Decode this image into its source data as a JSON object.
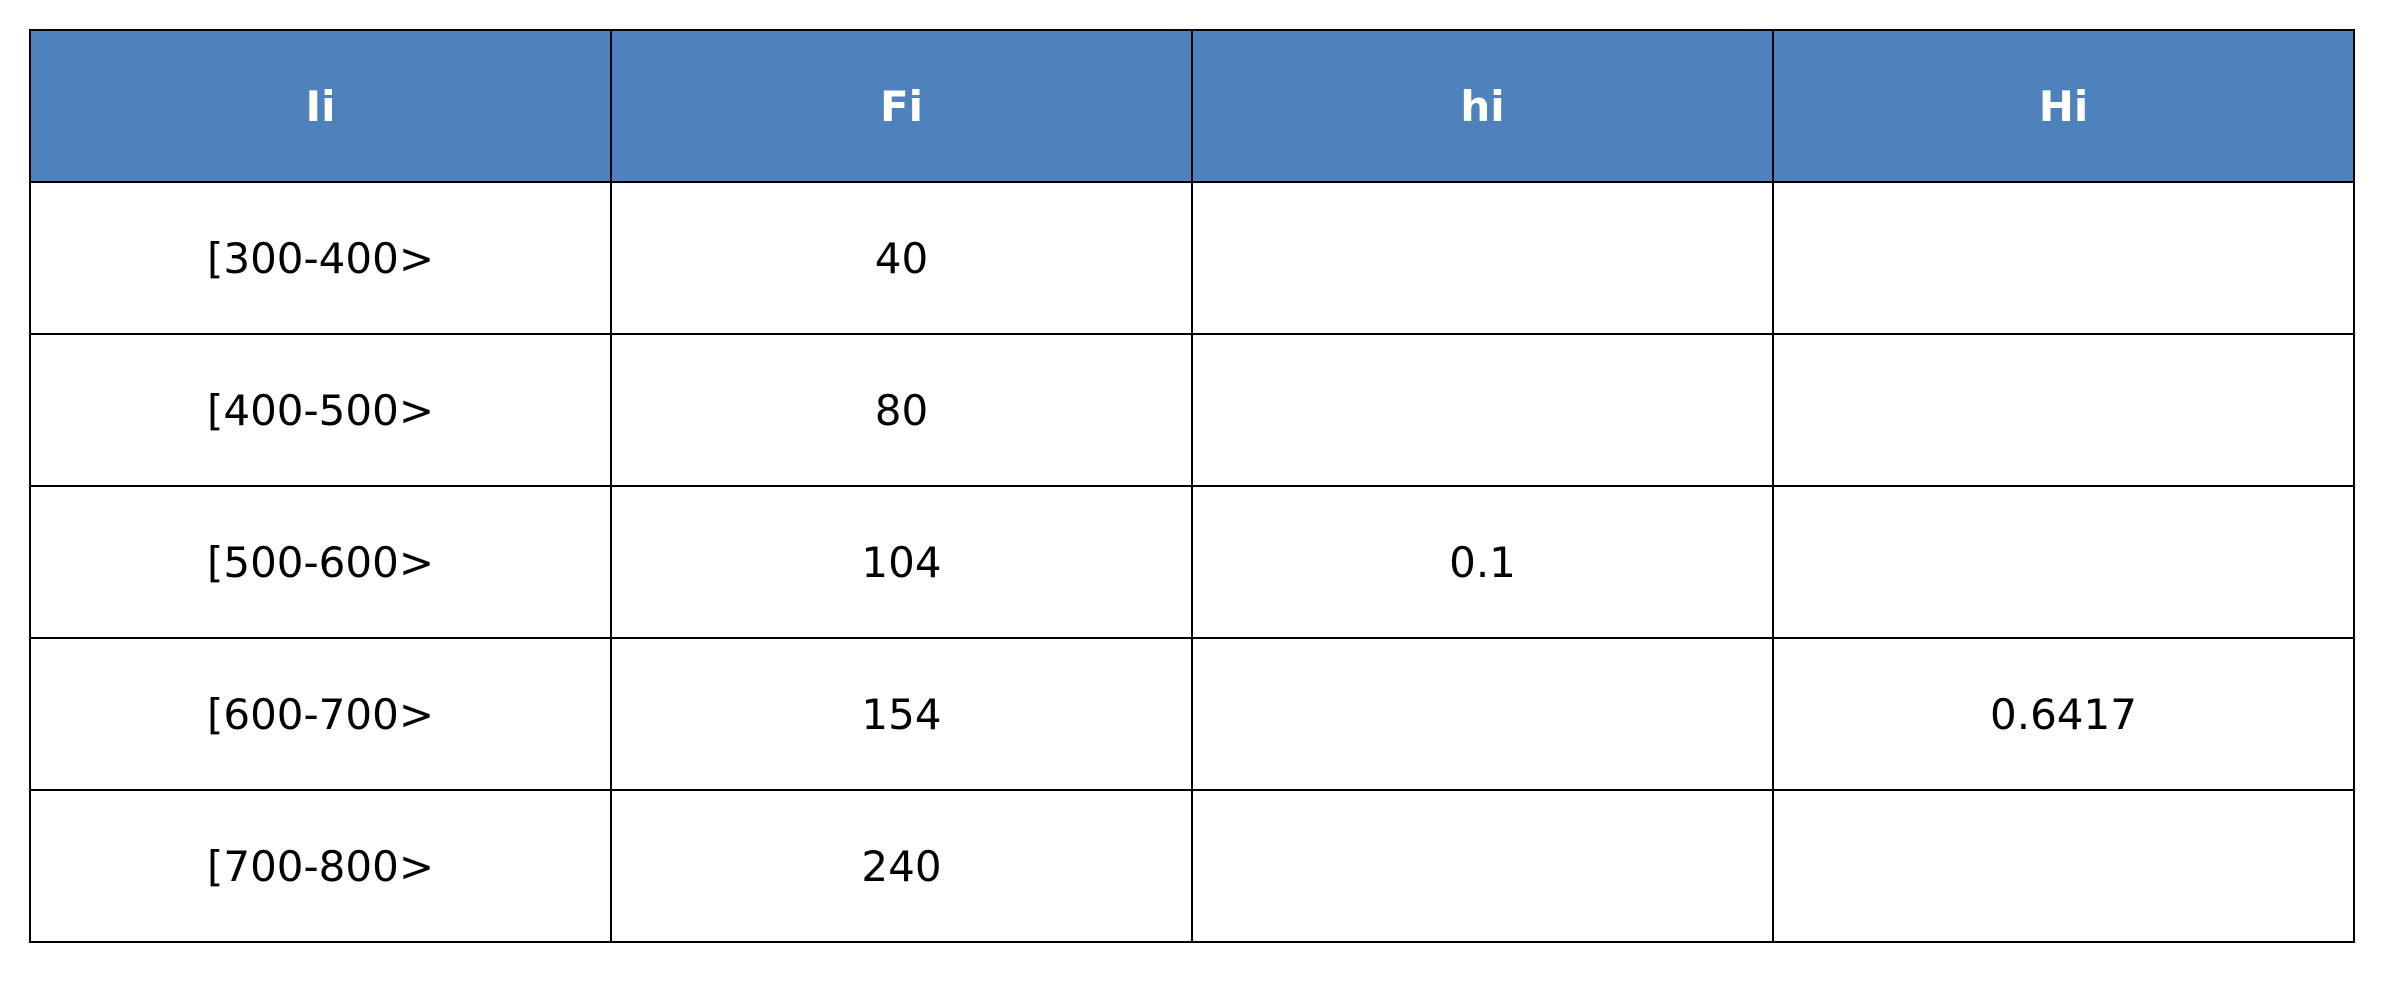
{
  "table": {
    "header_color": "#4f81bd",
    "columns": [
      "Ii",
      "Fi",
      "hi",
      "Hi"
    ],
    "rows": [
      [
        "[300-400>",
        "40",
        "",
        ""
      ],
      [
        "[400-500>",
        "80",
        "",
        ""
      ],
      [
        "[500-600>",
        "104",
        "0.1",
        ""
      ],
      [
        "[600-700>",
        "154",
        "",
        "0.6417"
      ],
      [
        "[700-800>",
        "240",
        "",
        ""
      ]
    ]
  }
}
